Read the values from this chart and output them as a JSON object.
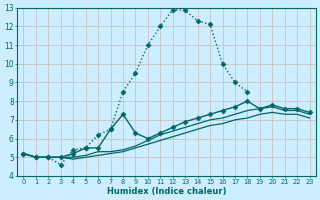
{
  "xlabel": "Humidex (Indice chaleur)",
  "bg_color": "#cceeff",
  "grid_color": "#aaddcc",
  "line_color": "#006666",
  "xlim": [
    -0.5,
    23.5
  ],
  "ylim": [
    4,
    13
  ],
  "xticks": [
    0,
    1,
    2,
    3,
    4,
    5,
    6,
    7,
    8,
    9,
    10,
    11,
    12,
    13,
    14,
    15,
    16,
    17,
    18,
    19,
    20,
    21,
    22,
    23
  ],
  "yticks": [
    4,
    5,
    6,
    7,
    8,
    9,
    10,
    11,
    12,
    13
  ],
  "series": [
    {
      "x": [
        0,
        1,
        2,
        3,
        4,
        5,
        6,
        7,
        8,
        9,
        10,
        11,
        12,
        13,
        14,
        15,
        16,
        17,
        18
      ],
      "y": [
        5.2,
        5.0,
        5.0,
        4.6,
        5.4,
        5.5,
        6.2,
        6.5,
        8.5,
        9.5,
        11.0,
        12.0,
        12.9,
        12.85,
        12.3,
        12.1,
        10.0,
        9.0,
        8.5
      ],
      "linestyle": ":",
      "marker": "D",
      "markersize": 2.5,
      "linewidth": 1.0
    },
    {
      "x": [
        0,
        1,
        2,
        3,
        4,
        5,
        6,
        7,
        8,
        9,
        10,
        11,
        12,
        13,
        14,
        15,
        16,
        17,
        18,
        19,
        20,
        21,
        22,
        23
      ],
      "y": [
        5.2,
        5.0,
        5.0,
        5.0,
        5.2,
        5.5,
        5.5,
        6.5,
        7.3,
        6.3,
        6.0,
        6.3,
        6.6,
        6.9,
        7.1,
        7.3,
        7.5,
        7.7,
        8.0,
        7.6,
        7.8,
        7.6,
        7.6,
        7.4
      ],
      "linestyle": "-",
      "marker": "D",
      "markersize": 2.5,
      "linewidth": 1.0
    },
    {
      "x": [
        0,
        1,
        2,
        3,
        4,
        5,
        6,
        7,
        8,
        9,
        10,
        11,
        12,
        13,
        14,
        15,
        16,
        17,
        18,
        19,
        20,
        21,
        22,
        23
      ],
      "y": [
        5.2,
        5.0,
        5.0,
        5.0,
        5.0,
        5.1,
        5.3,
        5.3,
        5.4,
        5.6,
        5.9,
        6.2,
        6.4,
        6.6,
        6.8,
        7.0,
        7.1,
        7.3,
        7.5,
        7.6,
        7.7,
        7.5,
        7.5,
        7.3
      ],
      "linestyle": "-",
      "marker": null,
      "markersize": 0,
      "linewidth": 0.9
    },
    {
      "x": [
        0,
        1,
        2,
        3,
        4,
        5,
        6,
        7,
        8,
        9,
        10,
        11,
        12,
        13,
        14,
        15,
        16,
        17,
        18,
        19,
        20,
        21,
        22,
        23
      ],
      "y": [
        5.2,
        5.0,
        5.0,
        5.0,
        4.9,
        5.0,
        5.1,
        5.2,
        5.3,
        5.5,
        5.7,
        5.9,
        6.1,
        6.3,
        6.5,
        6.7,
        6.8,
        7.0,
        7.1,
        7.3,
        7.4,
        7.3,
        7.3,
        7.1
      ],
      "linestyle": "-",
      "marker": null,
      "markersize": 0,
      "linewidth": 0.9
    }
  ]
}
